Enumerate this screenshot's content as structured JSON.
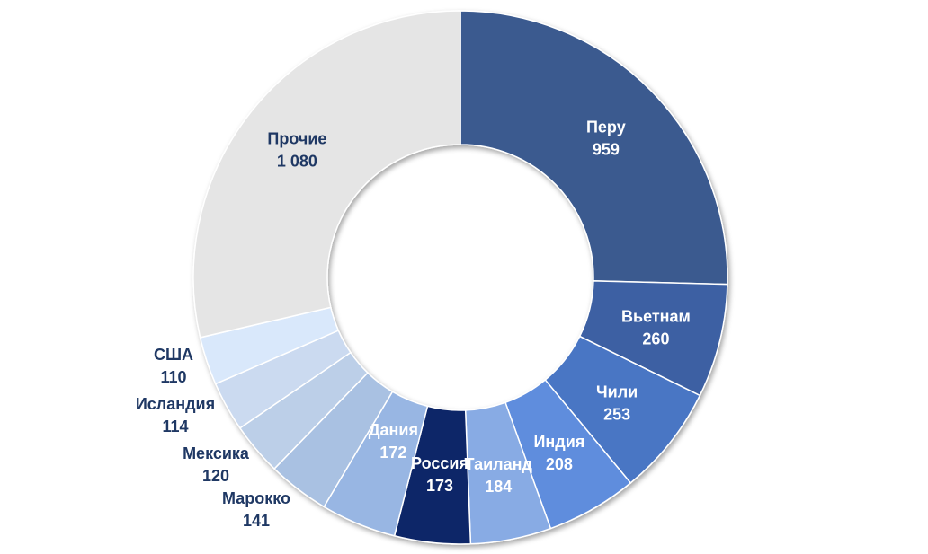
{
  "chart_data": {
    "type": "pie",
    "variant": "donut",
    "categories": [
      "Перу",
      "Вьетнам",
      "Чили",
      "Индия",
      "Таиланд",
      "Россия",
      "Дания",
      "Марокко",
      "Мексика",
      "Исландия",
      "США",
      "Прочие"
    ],
    "values": [
      959,
      260,
      253,
      208,
      184,
      173,
      172,
      141,
      120,
      114,
      110,
      1080
    ],
    "value_labels": [
      "959",
      "260",
      "253",
      "208",
      "184",
      "173",
      "172",
      "141",
      "120",
      "114",
      "110",
      "1 080"
    ],
    "colors": [
      "#3b5a8f",
      "#3e61a3",
      "#4a76c4",
      "#5f8ddd",
      "#88abe4",
      "#0e2567",
      "#98b6e3",
      "#a9c1e2",
      "#bccfe8",
      "#cbdaf0",
      "#d9e8fb",
      "#e5e5e5"
    ],
    "label_colors": [
      "#ffffff",
      "#ffffff",
      "#ffffff",
      "#ffffff",
      "#ffffff",
      "#ffffff",
      "#ffffff",
      "#1f3864",
      "#1f3864",
      "#1f3864",
      "#1f3864",
      "#1f3864"
    ],
    "title": "",
    "legend": "none"
  }
}
